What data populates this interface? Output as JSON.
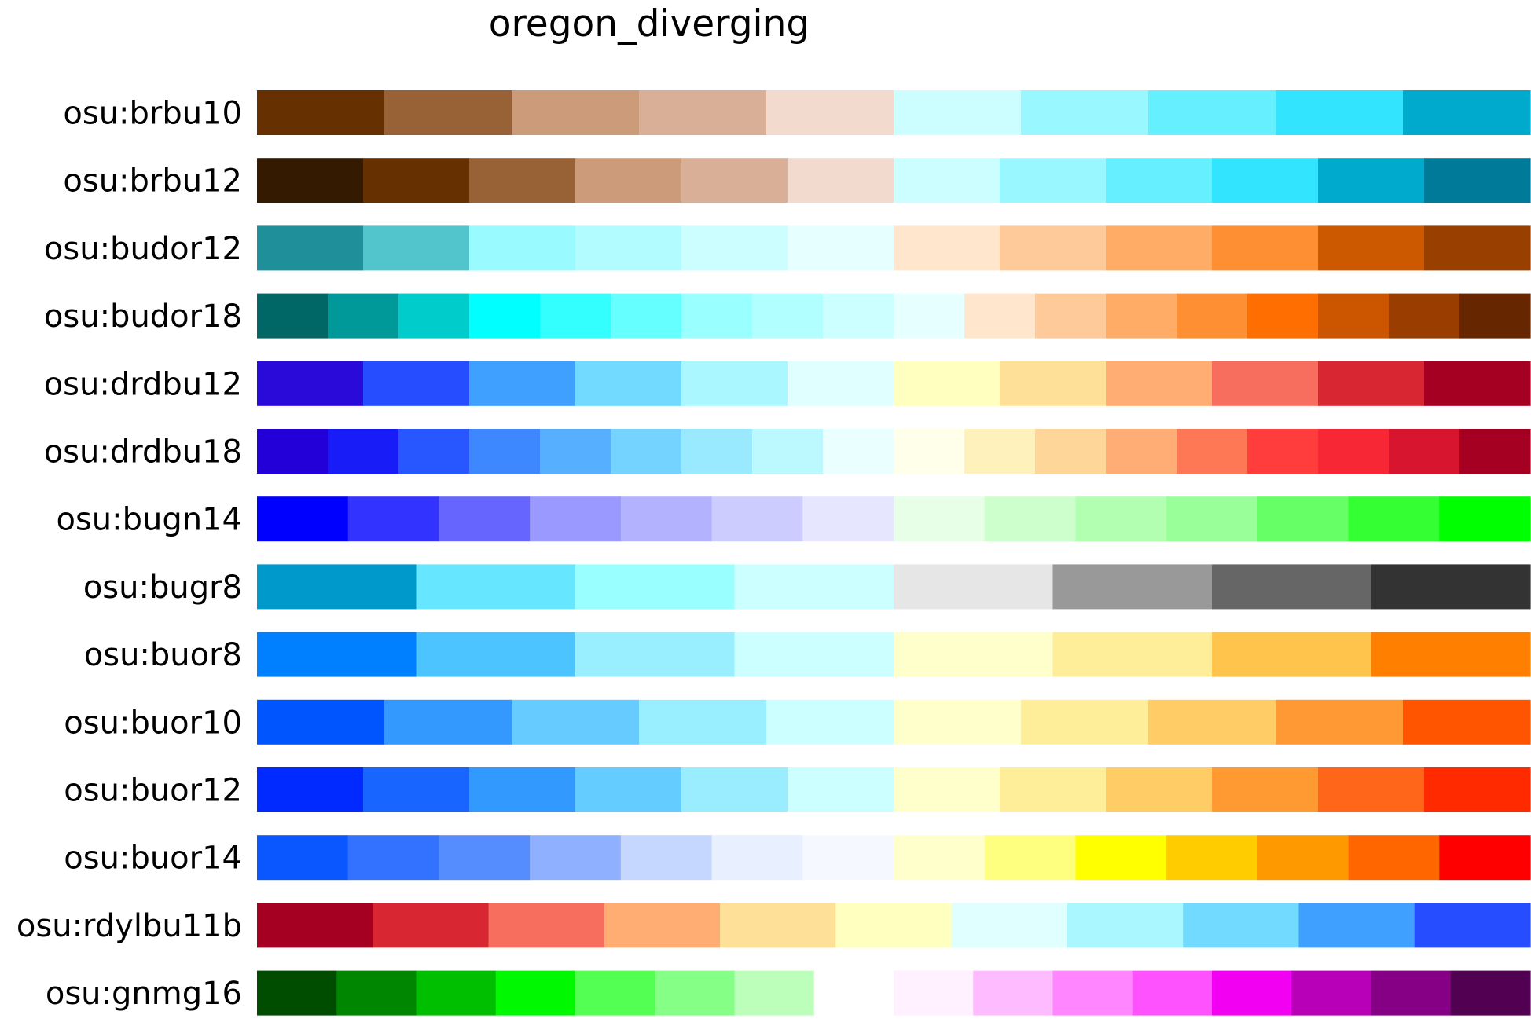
{
  "chart_data": {
    "type": "heatmap",
    "title": "oregon_diverging",
    "colormaps": [
      {
        "name": "osu:brbu10",
        "colors": [
          "#663000",
          "#996136",
          "#CC9B7A",
          "#D9AF98",
          "#F2DACE",
          "#CCFDFF",
          "#99F8FF",
          "#66F0FF",
          "#33E4FF",
          "#00AACC"
        ]
      },
      {
        "name": "osu:brbu12",
        "colors": [
          "#331A00",
          "#663000",
          "#996136",
          "#CC9B7A",
          "#D9AF98",
          "#F2DACE",
          "#CCFDFF",
          "#99F8FF",
          "#66F0FF",
          "#33E4FF",
          "#00AACC",
          "#007A99"
        ]
      },
      {
        "name": "osu:budor12",
        "colors": [
          "#1F8F99",
          "#52C4CC",
          "#99FAFF",
          "#B2FCFF",
          "#CCFEFF",
          "#E6FFFF",
          "#FFE6CC",
          "#FFCA99",
          "#FFAD66",
          "#FF8F33",
          "#CC5800",
          "#994000"
        ]
      },
      {
        "name": "osu:budor18",
        "colors": [
          "#006666",
          "#009999",
          "#00CCCC",
          "#00FFFF",
          "#33FFFF",
          "#66FFFF",
          "#99FFFF",
          "#B2FFFF",
          "#CCFFFF",
          "#E6FFFF",
          "#FFE6CC",
          "#FFCA99",
          "#FFAD66",
          "#FF8F33",
          "#FF6E00",
          "#CC5500",
          "#993D00",
          "#662700"
        ]
      },
      {
        "name": "osu:drdbu12",
        "colors": [
          "#290AD8",
          "#264DFF",
          "#3FA0FF",
          "#72D9FF",
          "#AAF7FF",
          "#E0FFFF",
          "#FFFFBF",
          "#FFE099",
          "#FFAD72",
          "#F76D5E",
          "#D82632",
          "#A50021"
        ]
      },
      {
        "name": "osu:drdbu18",
        "colors": [
          "#2400D8",
          "#181CF7",
          "#2857FF",
          "#3D87FF",
          "#56B0FF",
          "#75D3FF",
          "#99EAFF",
          "#BCF9FF",
          "#EAFFFF",
          "#FFFFEA",
          "#FFF1BC",
          "#FFD699",
          "#FFAC75",
          "#FF7856",
          "#FF3D3D",
          "#F72735",
          "#D8152F",
          "#A50021"
        ]
      },
      {
        "name": "osu:bugn14",
        "colors": [
          "#0000FF",
          "#3333FF",
          "#6666FF",
          "#9999FF",
          "#B2B2FF",
          "#CCCCFF",
          "#E6E6FF",
          "#E6FFE6",
          "#CCFFCC",
          "#B2FFB2",
          "#99FF99",
          "#66FF66",
          "#33FF33",
          "#00FF00"
        ]
      },
      {
        "name": "osu:bugr8",
        "colors": [
          "#0099CC",
          "#66E6FF",
          "#99FFFF",
          "#CCFFFF",
          "#E6E6E6",
          "#999999",
          "#666666",
          "#333333"
        ]
      },
      {
        "name": "osu:buor8",
        "colors": [
          "#0080FF",
          "#4CC4FF",
          "#99EEFF",
          "#CCFFFF",
          "#FFFFCC",
          "#FFEE99",
          "#FFC44C",
          "#FF8000"
        ]
      },
      {
        "name": "osu:buor10",
        "colors": [
          "#0055FF",
          "#3399FF",
          "#66CCFF",
          "#99EEFF",
          "#CCFFFF",
          "#FFFFCC",
          "#FFEE99",
          "#FFCC66",
          "#FF9933",
          "#FF5500"
        ]
      },
      {
        "name": "osu:buor12",
        "colors": [
          "#002AFF",
          "#1965FF",
          "#3299FF",
          "#65CCFF",
          "#99EDFF",
          "#CCFFFF",
          "#FFFFCC",
          "#FFEE99",
          "#FFCC65",
          "#FF9932",
          "#FF6619",
          "#FF2A00"
        ]
      },
      {
        "name": "osu:buor14",
        "colors": [
          "#0A57FF",
          "#3371FF",
          "#558DFF",
          "#8FB0FF",
          "#C5D7FF",
          "#E8F0FF",
          "#F5F8FF",
          "#FFFFCC",
          "#FFFF7F",
          "#FFFF00",
          "#FFCC00",
          "#FF9900",
          "#FF6600",
          "#FF0000"
        ]
      },
      {
        "name": "osu:rdylbu11b",
        "colors": [
          "#A50021",
          "#D82632",
          "#F76D5E",
          "#FFAD72",
          "#FFE099",
          "#FFFFBF",
          "#E0FFFF",
          "#AAF7FF",
          "#72D9FF",
          "#3FA0FF",
          "#264DFF"
        ]
      },
      {
        "name": "osu:gnmg16",
        "colors": [
          "#004D00",
          "#008600",
          "#00BF00",
          "#00F900",
          "#52FF52",
          "#86FF86",
          "#BBFFBB",
          "#FFFFFF",
          "#FFF1FF",
          "#FFBBFF",
          "#FF86FF",
          "#FF52FF",
          "#F200F2",
          "#B800B8",
          "#850085",
          "#520052"
        ]
      }
    ]
  }
}
